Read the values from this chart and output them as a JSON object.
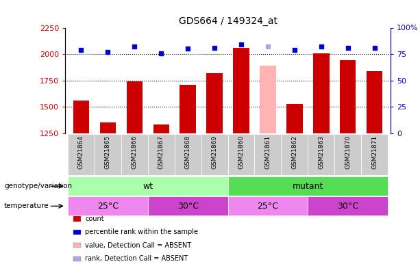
{
  "title": "GDS664 / 149324_at",
  "samples": [
    "GSM21864",
    "GSM21865",
    "GSM21866",
    "GSM21867",
    "GSM21868",
    "GSM21869",
    "GSM21860",
    "GSM21861",
    "GSM21862",
    "GSM21863",
    "GSM21870",
    "GSM21871"
  ],
  "counts": [
    1560,
    1355,
    1740,
    1330,
    1710,
    1820,
    2060,
    1890,
    1530,
    2010,
    1940,
    1840
  ],
  "absent_indices": [
    7
  ],
  "percentile_ranks": [
    79,
    77,
    82,
    76,
    80,
    81,
    84,
    82,
    79,
    82,
    81,
    81
  ],
  "absent_rank_indices": [
    7
  ],
  "ylim_left": [
    1250,
    2250
  ],
  "ylim_right": [
    0,
    100
  ],
  "yticks_left": [
    1250,
    1500,
    1750,
    2000,
    2250
  ],
  "yticks_right": [
    0,
    25,
    50,
    75,
    100
  ],
  "ytick_labels_right": [
    "0",
    "25",
    "50",
    "75",
    "100%"
  ],
  "bar_color_normal": "#cc0000",
  "bar_color_absent": "#ffb3b3",
  "rank_color_normal": "#0000cc",
  "rank_color_absent": "#aaaadd",
  "wt_color": "#aaffaa",
  "mutant_color": "#55dd55",
  "temp25_color": "#ee88ee",
  "temp30_color": "#cc44cc",
  "label_bg_color": "#cccccc",
  "legend_items": [
    {
      "color": "#cc0000",
      "label": "count"
    },
    {
      "color": "#0000cc",
      "label": "percentile rank within the sample"
    },
    {
      "color": "#ffb3b3",
      "label": "value, Detection Call = ABSENT"
    },
    {
      "color": "#aaaadd",
      "label": "rank, Detection Call = ABSENT"
    }
  ],
  "genotype_groups": [
    {
      "label": "wt",
      "start": 0,
      "end": 6,
      "color": "#aaffaa"
    },
    {
      "label": "mutant",
      "start": 6,
      "end": 12,
      "color": "#55dd55"
    }
  ],
  "temp_groups": [
    {
      "label": "25°C",
      "start": 0,
      "end": 3,
      "color": "#ee88ee"
    },
    {
      "label": "30°C",
      "start": 3,
      "end": 6,
      "color": "#cc44cc"
    },
    {
      "label": "25°C",
      "start": 6,
      "end": 9,
      "color": "#ee88ee"
    },
    {
      "label": "30°C",
      "start": 9,
      "end": 12,
      "color": "#cc44cc"
    }
  ]
}
